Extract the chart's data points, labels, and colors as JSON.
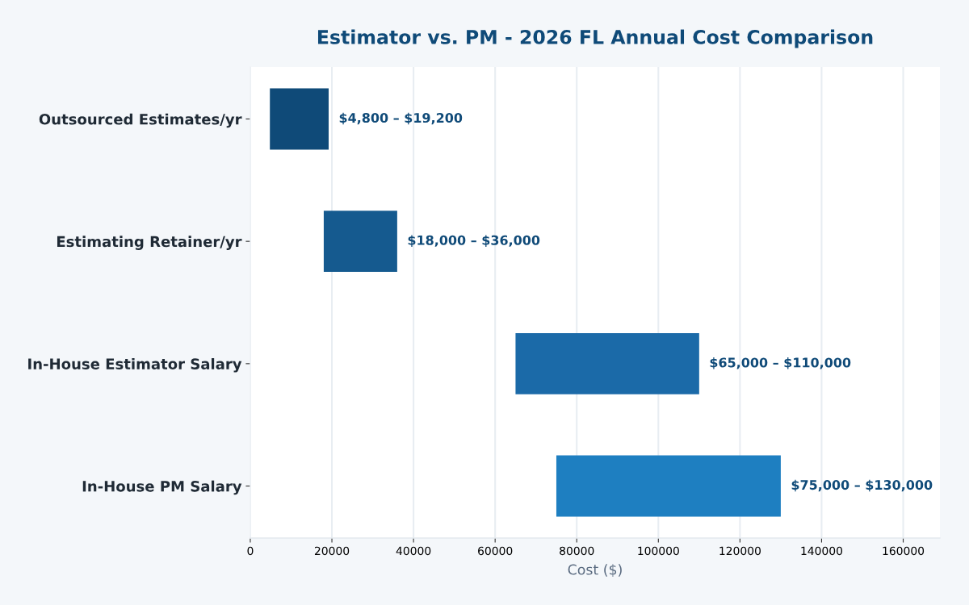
{
  "chart_data": {
    "type": "bar",
    "orientation": "horizontal",
    "title": "Estimator vs. PM - 2026 FL Annual Cost Comparison",
    "xlabel": "Cost ($)",
    "categories": [
      "Outsourced Estimates/yr",
      "Estimating Retainer/yr",
      "In-House Estimator Salary",
      "In-House PM Salary"
    ],
    "base": [
      4800,
      18000,
      65000,
      75000
    ],
    "values": [
      14400,
      18000,
      45000,
      55000
    ],
    "colors": [
      "#0f4a78",
      "#155a8f",
      "#1b6aa8",
      "#1e7fc1"
    ],
    "annotations": [
      {
        "text": "$4,800 – $19,200",
        "x": 19200,
        "y": "Outsourced Estimates/yr"
      },
      {
        "text": "$18,000 – $36,000",
        "x": 36000,
        "y": "Estimating Retainer/yr"
      },
      {
        "text": "$65,000 – $110,000",
        "x": 110000,
        "y": "In-House Estimator Salary"
      },
      {
        "text": "$75,000 – $130,000",
        "x": 130000,
        "y": "In-House PM Salary"
      }
    ],
    "xlim": [
      0,
      169000
    ],
    "xticks": [
      0,
      20000,
      40000,
      60000,
      80000,
      100000,
      120000,
      140000,
      160000
    ],
    "grid": "x"
  }
}
